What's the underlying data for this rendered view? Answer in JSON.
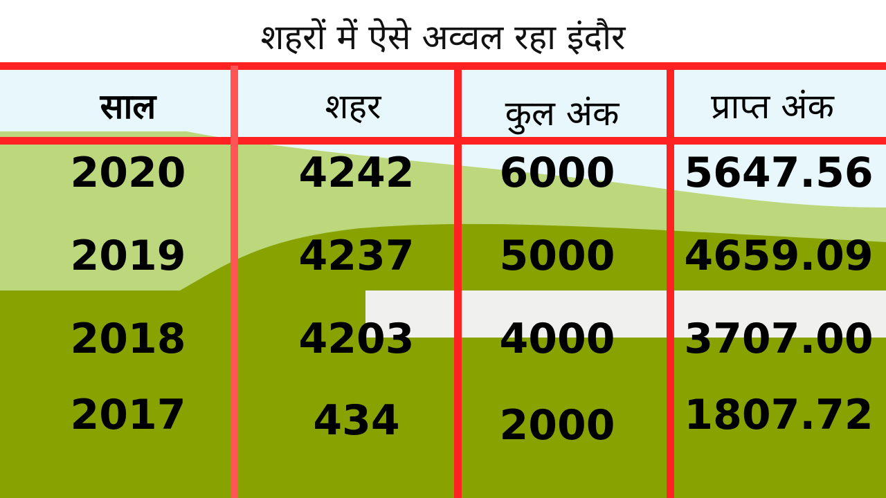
{
  "title": "शहरों में ऐसे अव्वल रहा इंदौर",
  "colors": {
    "lines": "#ff2222",
    "dark_green": "#88a200",
    "light_green": "#bcd77c",
    "sky": "#e8f7fb"
  },
  "chart_data": {
    "type": "table",
    "title": "शहरों में ऐसे अव्वल रहा इंदौर",
    "columns": [
      "साल",
      "शहर",
      "कुल अंक",
      "प्राप्त अंक"
    ],
    "rows": [
      [
        "2020",
        "4242",
        "6000",
        "5647.56"
      ],
      [
        "2019",
        "4237",
        "5000",
        "4659.09"
      ],
      [
        "2018",
        "4203",
        "4000",
        "3707.00"
      ],
      [
        "2017",
        "434",
        "2000",
        "1807.72"
      ]
    ]
  }
}
